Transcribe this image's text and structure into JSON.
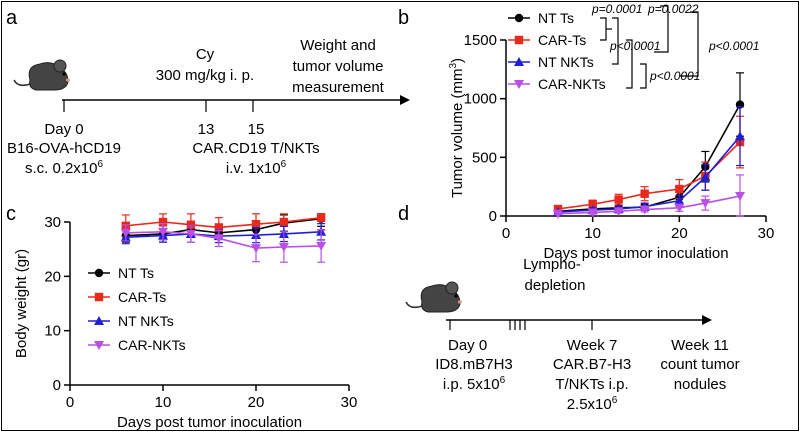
{
  "panels": {
    "a": "a",
    "b": "b",
    "c": "c",
    "d": "d"
  },
  "colors": {
    "nt_ts": "#000000",
    "car_ts": "#e8291c",
    "nt_nkts": "#1f1fd6",
    "car_nkts": "#b94fe6",
    "axis": "#000000"
  },
  "timeline_a": {
    "event_cy_line1": "Cy",
    "event_cy_line2": "300 mg/kg i. p.",
    "measure_line1": "Weight and",
    "measure_line2": "tumor volume",
    "measure_line3": "measurement",
    "day0": "Day 0",
    "model": "B16-OVA-hCD19",
    "dose_prefix": "s.c. 0.2x10",
    "dose_exp": "6",
    "tick_13": "13",
    "tick_15": "15",
    "cells": "CAR.CD19 T/NKTs",
    "cells_dose_prefix": "i.v. 1x10",
    "cells_dose_exp": "6"
  },
  "timeline_d": {
    "lympho_line1": "Lympho-",
    "lympho_line2": "depletion",
    "day0": "Day 0",
    "model": "ID8.mB7H3",
    "dose_prefix": "i.p. 5x10",
    "dose_exp": "6",
    "week7": "Week 7",
    "cells": "CAR.B7-H3",
    "cells_route": "T/NKTs i.p.",
    "cells_dose_prefix": "2.5x10",
    "cells_dose_exp": "6",
    "week11": "Week 11",
    "outcome_line1": "count tumor",
    "outcome_line2": "nodules"
  },
  "chart_data": [
    {
      "id": "b",
      "type": "line",
      "xlabel": "Days post tumor inoculation",
      "ylabel_main": "Tumor volume (mm",
      "ylabel_sup": "3",
      "ylabel_end": ")",
      "xlim": [
        0,
        30
      ],
      "ylim": [
        0,
        1500
      ],
      "xticks": [
        0,
        10,
        20,
        30
      ],
      "yticks": [
        0,
        500,
        1000,
        1500
      ],
      "x": [
        6,
        10,
        13,
        16,
        20,
        23,
        27
      ],
      "series": [
        {
          "name": "NT Ts",
          "key": "nt_ts",
          "marker": "circle",
          "values": [
            40,
            60,
            70,
            75,
            160,
            420,
            950
          ],
          "err": [
            15,
            20,
            20,
            25,
            50,
            130,
            270
          ]
        },
        {
          "name": "CAR-Ts",
          "key": "car_ts",
          "marker": "square",
          "values": [
            60,
            100,
            140,
            190,
            230,
            340,
            630
          ],
          "err": [
            25,
            35,
            45,
            60,
            80,
            120,
            220
          ]
        },
        {
          "name": "NT NKTs",
          "key": "nt_nkts",
          "marker": "triangle",
          "values": [
            35,
            50,
            60,
            80,
            130,
            330,
            680
          ],
          "err": [
            10,
            20,
            25,
            30,
            45,
            110,
            250
          ]
        },
        {
          "name": "CAR-NKTs",
          "key": "car_nkts",
          "marker": "triangle-down",
          "values": [
            20,
            30,
            40,
            55,
            70,
            110,
            170
          ],
          "err": [
            8,
            12,
            15,
            20,
            30,
            60,
            180
          ]
        }
      ],
      "annotations": [
        "p=0.0001",
        "p=0.0022",
        "p<0.0001",
        "p<0.0001",
        "p<0.0001"
      ]
    },
    {
      "id": "c",
      "type": "line",
      "xlabel": "Days post tumor inoculation",
      "ylabel": "Body weight (gr)",
      "xlim": [
        0,
        30
      ],
      "ylim": [
        0,
        30
      ],
      "xticks": [
        0,
        10,
        20,
        30
      ],
      "yticks": [
        0,
        10,
        20,
        30
      ],
      "x": [
        6,
        10,
        13,
        16,
        20,
        23,
        27
      ],
      "series": [
        {
          "name": "NT Ts",
          "key": "nt_ts",
          "marker": "circle",
          "values": [
            27.5,
            27.8,
            28.6,
            28.0,
            28.6,
            29.8,
            30.6
          ],
          "err": [
            1.2,
            1.5,
            1.4,
            1.2,
            1.5,
            1.5,
            1.4
          ]
        },
        {
          "name": "CAR-Ts",
          "key": "car_ts",
          "marker": "square",
          "values": [
            29.3,
            30.0,
            29.5,
            29.0,
            29.6,
            30.0,
            30.8
          ],
          "err": [
            2.0,
            2.5,
            2.2,
            1.8,
            2.0,
            2.2,
            2.3
          ]
        },
        {
          "name": "NT NKTs",
          "key": "nt_nkts",
          "marker": "triangle",
          "values": [
            27.2,
            27.5,
            27.8,
            27.4,
            27.6,
            27.8,
            28.2
          ],
          "err": [
            1.2,
            1.2,
            1.5,
            1.2,
            1.4,
            1.4,
            1.5
          ]
        },
        {
          "name": "CAR-NKTs",
          "key": "car_nkts",
          "marker": "triangle-down",
          "values": [
            28.0,
            28.2,
            27.8,
            27.0,
            25.2,
            25.4,
            25.6
          ],
          "err": [
            1.5,
            1.5,
            1.5,
            1.5,
            2.5,
            2.8,
            3.0
          ]
        }
      ],
      "legend": [
        "NT Ts",
        "CAR-Ts",
        "NT NKTs",
        "CAR-NKTs"
      ]
    }
  ]
}
